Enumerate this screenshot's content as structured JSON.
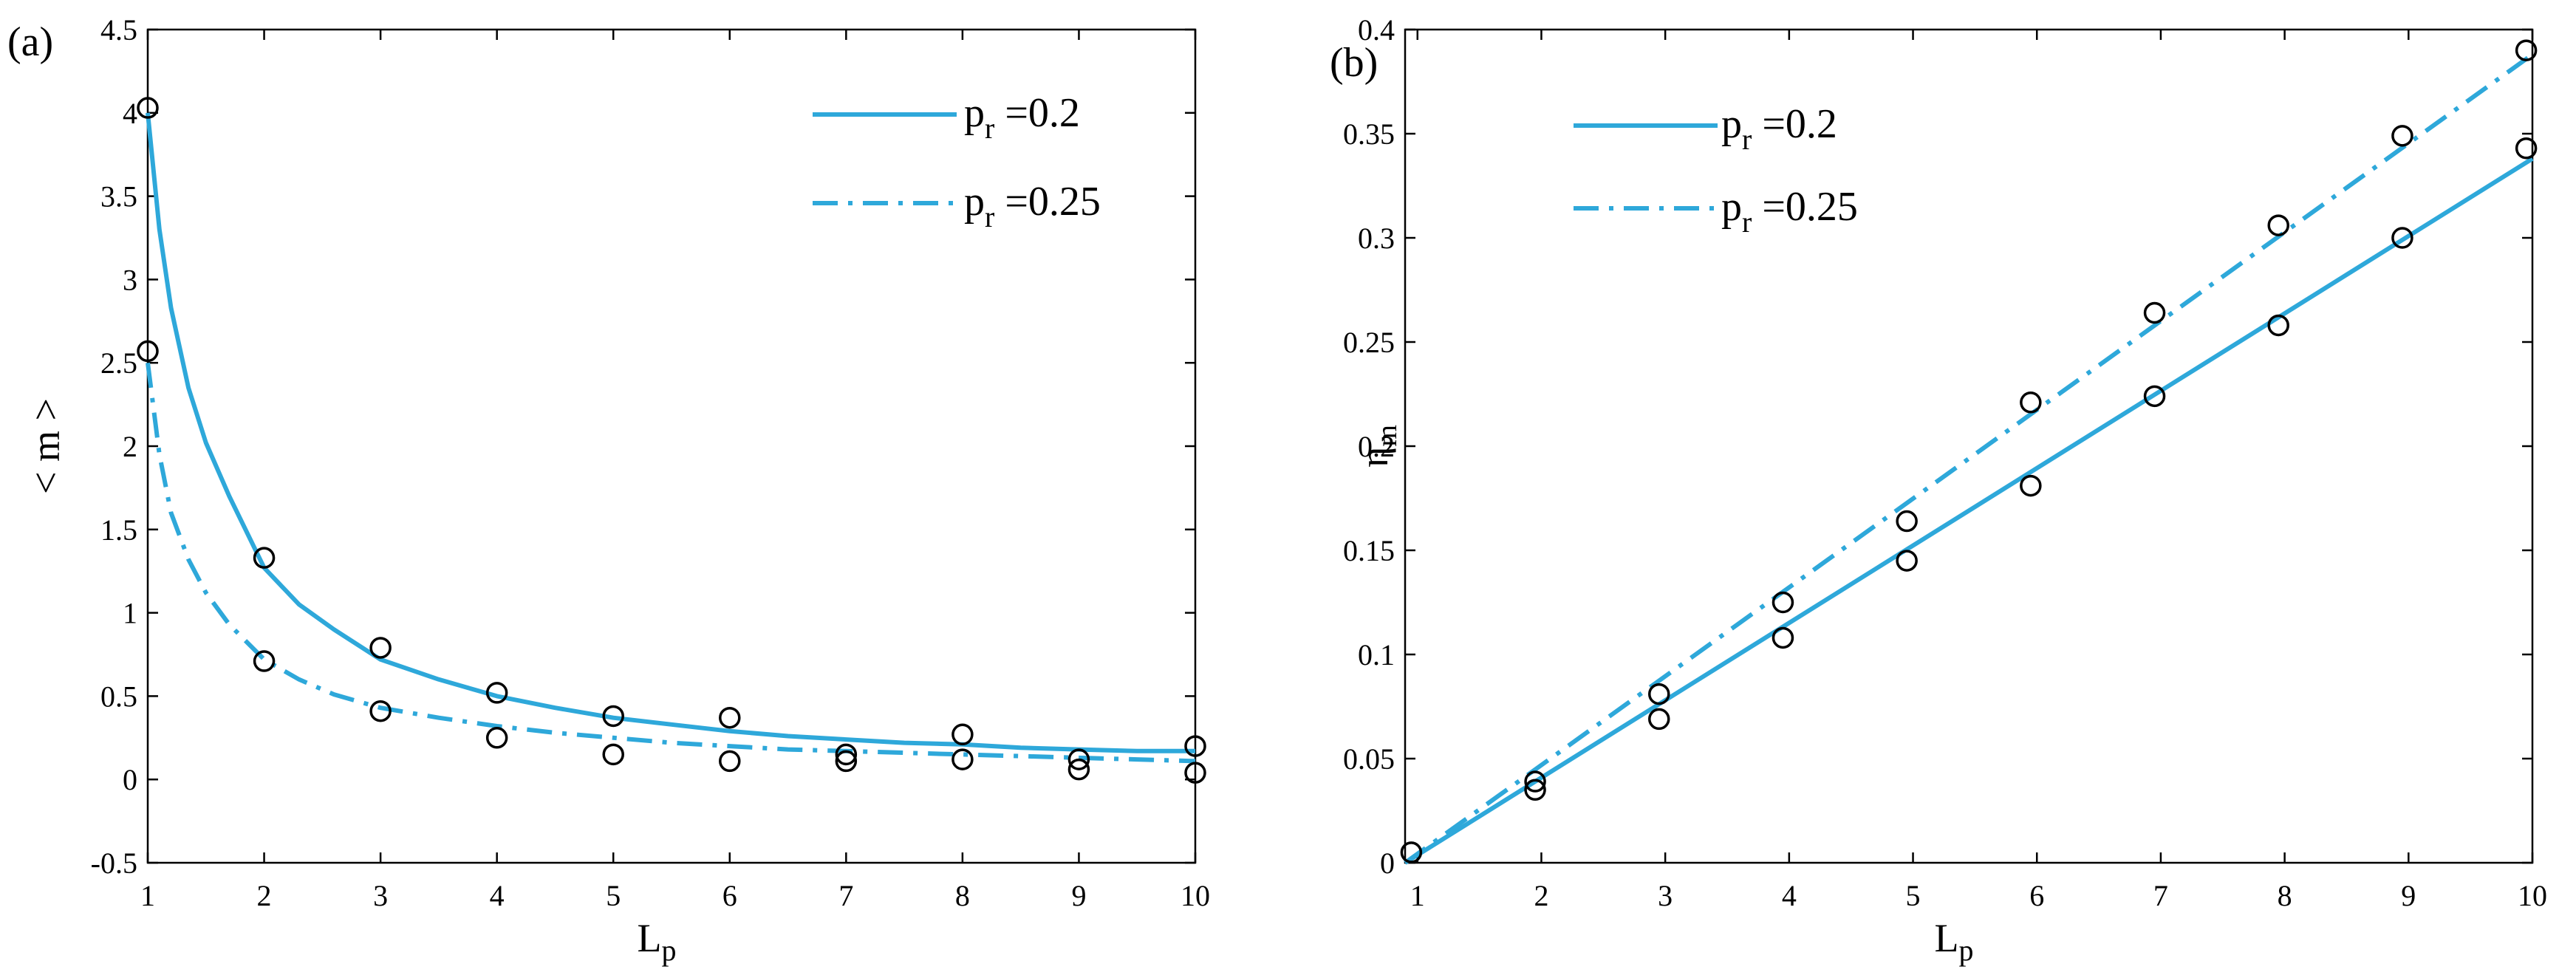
{
  "chart_data": [
    {
      "type": "line",
      "panel_label": "(a)",
      "xlabel": "L",
      "xlabel_sub": "p",
      "ylabel": "< m >",
      "xlim": [
        1,
        10
      ],
      "ylim": [
        -0.5,
        4.5
      ],
      "xticks": [
        1,
        2,
        3,
        4,
        5,
        6,
        7,
        8,
        9,
        10
      ],
      "yticks": [
        -0.5,
        0,
        0.5,
        1,
        1.5,
        2,
        2.5,
        3,
        3.5,
        4,
        4.5
      ],
      "ytick_labels": [
        "-0.5",
        "0",
        "0.5",
        "1",
        "1.5",
        "2",
        "2.5",
        "3",
        "3.5",
        "4",
        "4.5"
      ],
      "legend_position": "top-right",
      "series": [
        {
          "name": "p_r =0.2",
          "legend_main": "p",
          "legend_sub": "r",
          "legend_value": " =0.2",
          "style": "solid",
          "x": [
            1,
            1.1,
            1.2,
            1.35,
            1.5,
            1.7,
            2,
            2.3,
            2.6,
            3,
            3.5,
            4,
            4.5,
            5,
            5.5,
            6,
            6.5,
            7,
            7.5,
            8,
            8.5,
            9,
            9.5,
            10
          ],
          "values": [
            4.0,
            3.3,
            2.83,
            2.35,
            2.02,
            1.7,
            1.27,
            1.05,
            0.9,
            0.72,
            0.6,
            0.5,
            0.43,
            0.37,
            0.33,
            0.29,
            0.26,
            0.24,
            0.22,
            0.21,
            0.19,
            0.18,
            0.17,
            0.17
          ]
        },
        {
          "name": "p_r =0.25",
          "legend_main": "p",
          "legend_sub": "r",
          "legend_value": " =0.25",
          "style": "dashdot",
          "x": [
            1,
            1.1,
            1.2,
            1.35,
            1.5,
            1.7,
            2,
            2.3,
            2.6,
            3,
            3.5,
            4,
            4.5,
            5,
            5.5,
            6,
            6.5,
            7,
            7.5,
            8,
            8.5,
            9,
            9.5,
            10
          ],
          "values": [
            2.5,
            1.95,
            1.6,
            1.32,
            1.12,
            0.93,
            0.72,
            0.6,
            0.51,
            0.43,
            0.37,
            0.32,
            0.28,
            0.25,
            0.22,
            0.2,
            0.18,
            0.17,
            0.16,
            0.15,
            0.14,
            0.13,
            0.12,
            0.11
          ]
        }
      ],
      "markers": [
        {
          "x": 1,
          "y": 4.03
        },
        {
          "x": 1,
          "y": 2.57
        },
        {
          "x": 2,
          "y": 1.33
        },
        {
          "x": 2,
          "y": 0.71
        },
        {
          "x": 3,
          "y": 0.79
        },
        {
          "x": 3,
          "y": 0.41
        },
        {
          "x": 4,
          "y": 0.52
        },
        {
          "x": 4,
          "y": 0.25
        },
        {
          "x": 5,
          "y": 0.38
        },
        {
          "x": 5,
          "y": 0.15
        },
        {
          "x": 6,
          "y": 0.37
        },
        {
          "x": 6,
          "y": 0.11
        },
        {
          "x": 7,
          "y": 0.15
        },
        {
          "x": 7,
          "y": 0.11
        },
        {
          "x": 8,
          "y": 0.27
        },
        {
          "x": 8,
          "y": 0.12
        },
        {
          "x": 9,
          "y": 0.12
        },
        {
          "x": 9,
          "y": 0.06
        },
        {
          "x": 10,
          "y": 0.2
        },
        {
          "x": 10,
          "y": 0.04
        }
      ]
    },
    {
      "type": "line",
      "panel_label": "(b)",
      "xlabel": "L",
      "xlabel_sub": "p",
      "ylabel": "η",
      "ylabel_sub": "m",
      "xlim": [
        0.9,
        10
      ],
      "ylim": [
        0,
        0.4
      ],
      "xticks": [
        1,
        2,
        3,
        4,
        5,
        6,
        7,
        8,
        9,
        10
      ],
      "yticks": [
        0,
        0.05,
        0.1,
        0.15,
        0.2,
        0.25,
        0.3,
        0.35,
        0.4
      ],
      "ytick_labels": [
        "0",
        "0.05",
        "0.1",
        "0.15",
        "0.2",
        "0.25",
        "0.3",
        "0.35",
        "0.4"
      ],
      "legend_position": "top-left",
      "series": [
        {
          "name": "p_r =0.2",
          "legend_main": "p",
          "legend_sub": "r",
          "legend_value": " =0.2",
          "style": "solid",
          "x": [
            0.9,
            10
          ],
          "values": [
            0.0,
            0.338
          ]
        },
        {
          "name": "p_r =0.25",
          "legend_main": "p",
          "legend_sub": "r",
          "legend_value": " =0.25",
          "style": "dashdot",
          "x": [
            0.9,
            10
          ],
          "values": [
            0.0,
            0.388
          ]
        }
      ],
      "markers": [
        {
          "x": 0.95,
          "y": 0.005
        },
        {
          "x": 1.95,
          "y": 0.039
        },
        {
          "x": 1.95,
          "y": 0.035
        },
        {
          "x": 2.95,
          "y": 0.081
        },
        {
          "x": 2.95,
          "y": 0.069
        },
        {
          "x": 3.95,
          "y": 0.125
        },
        {
          "x": 3.95,
          "y": 0.108
        },
        {
          "x": 4.95,
          "y": 0.164
        },
        {
          "x": 4.95,
          "y": 0.145
        },
        {
          "x": 5.95,
          "y": 0.221
        },
        {
          "x": 5.95,
          "y": 0.181
        },
        {
          "x": 6.95,
          "y": 0.264
        },
        {
          "x": 6.95,
          "y": 0.224
        },
        {
          "x": 7.95,
          "y": 0.306
        },
        {
          "x": 7.95,
          "y": 0.258
        },
        {
          "x": 8.95,
          "y": 0.349
        },
        {
          "x": 8.95,
          "y": 0.3
        },
        {
          "x": 9.95,
          "y": 0.39
        },
        {
          "x": 9.95,
          "y": 0.343
        }
      ]
    }
  ],
  "colors": {
    "series_solid": "#2ea8da",
    "series_dashdot": "#2ea8da",
    "marker": "#000000",
    "axis": "#000000"
  }
}
